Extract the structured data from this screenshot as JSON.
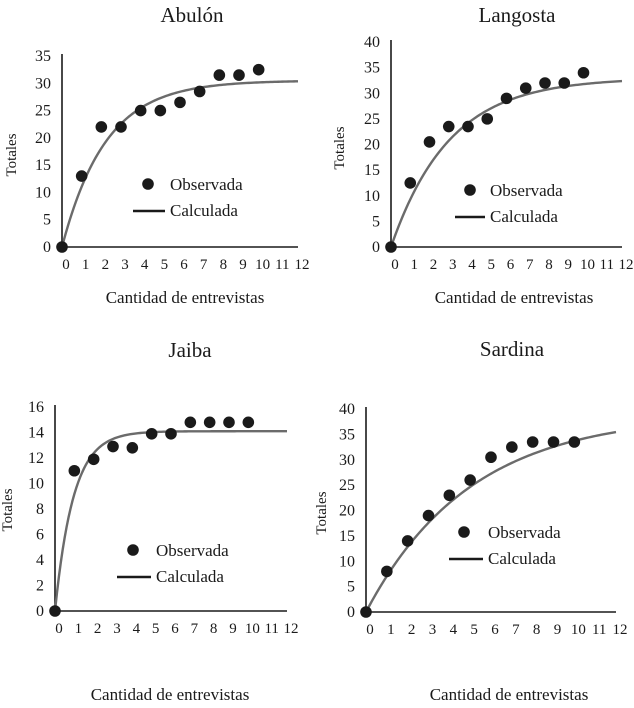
{
  "chart_data": [
    {
      "type": "scatter",
      "title": "Abulón",
      "xlabel": "Cantidad de entrevistas",
      "ylabel": "Totales",
      "xlim": [
        0,
        12
      ],
      "ylim": [
        0,
        35
      ],
      "yticks": [
        0,
        5,
        10,
        15,
        20,
        25,
        30,
        35
      ],
      "xticks": [
        0,
        1,
        2,
        3,
        4,
        5,
        6,
        7,
        8,
        9,
        10,
        11,
        12
      ],
      "legend": {
        "observed": "Observada",
        "fitted": "Calculada"
      },
      "series": [
        {
          "name": "Observada",
          "x": [
            0,
            1,
            2,
            3,
            4,
            5,
            6,
            7,
            8,
            9,
            10
          ],
          "y": [
            0,
            13,
            22,
            22,
            25,
            25,
            26.5,
            28.5,
            31.5,
            31.5,
            32.5
          ]
        },
        {
          "name": "Calculada",
          "model": "asymptotic",
          "asymptote": 30.5,
          "rate": 0.45
        }
      ]
    },
    {
      "type": "scatter",
      "title": "Langosta",
      "xlabel": "Cantidad de entrevistas",
      "ylabel": "Totales",
      "xlim": [
        0,
        12
      ],
      "ylim": [
        0,
        40
      ],
      "yticks": [
        0,
        5,
        10,
        15,
        20,
        25,
        30,
        35,
        40
      ],
      "xticks": [
        0,
        1,
        2,
        3,
        4,
        5,
        6,
        7,
        8,
        9,
        10,
        11,
        12
      ],
      "legend": {
        "observed": "Observada",
        "fitted": "Calculada"
      },
      "series": [
        {
          "name": "Observada",
          "x": [
            0,
            1,
            2,
            3,
            4,
            5,
            6,
            7,
            8,
            9,
            10
          ],
          "y": [
            0,
            12.5,
            20.5,
            23.5,
            23.5,
            25,
            29,
            31,
            32,
            32,
            34
          ]
        },
        {
          "name": "Calculada",
          "model": "asymptotic",
          "asymptote": 33,
          "rate": 0.33
        }
      ]
    },
    {
      "type": "scatter",
      "title": "Jaiba",
      "xlabel": "Cantidad de entrevistas",
      "ylabel": "Totales",
      "xlim": [
        0,
        12
      ],
      "ylim": [
        0,
        16
      ],
      "yticks": [
        0,
        2,
        4,
        6,
        8,
        10,
        12,
        14,
        16
      ],
      "xticks": [
        0,
        1,
        2,
        3,
        4,
        5,
        6,
        7,
        8,
        9,
        10,
        11,
        12
      ],
      "legend": {
        "observed": "Observada",
        "fitted": "Calculada"
      },
      "series": [
        {
          "name": "Observada",
          "x": [
            0,
            1,
            2,
            3,
            4,
            5,
            6,
            7,
            8,
            9,
            10
          ],
          "y": [
            0,
            11,
            11.9,
            12.9,
            12.8,
            13.9,
            13.9,
            14.8,
            14.8,
            14.8,
            14.8
          ]
        },
        {
          "name": "Calculada",
          "model": "asymptotic",
          "asymptote": 14.1,
          "rate": 1.05
        }
      ]
    },
    {
      "type": "scatter",
      "title": "Sardina",
      "xlabel": "Cantidad de entrevistas",
      "ylabel": "Totales",
      "xlim": [
        0,
        12
      ],
      "ylim": [
        0,
        40
      ],
      "yticks": [
        0,
        5,
        10,
        15,
        20,
        25,
        30,
        35,
        40
      ],
      "xticks": [
        0,
        1,
        2,
        3,
        4,
        5,
        6,
        7,
        8,
        9,
        10,
        11,
        12
      ],
      "legend": {
        "observed": "Observada",
        "fitted": "Calculada"
      },
      "series": [
        {
          "name": "Observada",
          "x": [
            0,
            1,
            2,
            3,
            4,
            5,
            6,
            7,
            8,
            9,
            10
          ],
          "y": [
            0,
            8,
            14,
            19,
            23,
            26,
            30.5,
            32.5,
            33.5,
            33.5,
            33.5
          ]
        },
        {
          "name": "Calculada",
          "model": "asymptotic",
          "asymptote": 39,
          "rate": 0.2
        }
      ]
    }
  ]
}
